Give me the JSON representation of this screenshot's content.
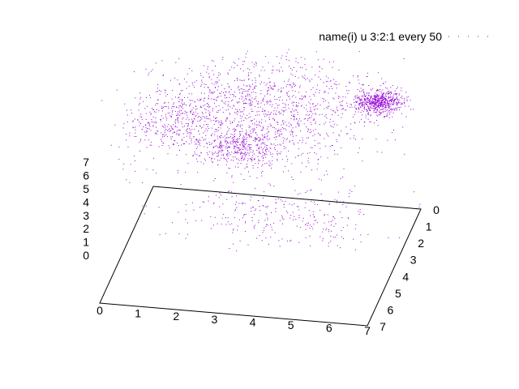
{
  "chart_data": {
    "type": "scatter",
    "dimensions": 3,
    "title": "",
    "legend": {
      "label": "name(i) u 3:2:1 every 50",
      "position": "top-right"
    },
    "series": [
      {
        "name": "name(i) u 3:2:1 every 50",
        "color": "#9400d3",
        "marker": "dot",
        "clusters": [
          {
            "x": 3.2,
            "y": 2.7,
            "z": 5.6,
            "sx": 0.55,
            "sy": 0.55,
            "sz": 0.35,
            "count": 420
          },
          {
            "x": 6.2,
            "y": 5.4,
            "z": 6.3,
            "sx": 0.3,
            "sy": 0.35,
            "sz": 0.12,
            "count": 650
          },
          {
            "x": 1.2,
            "y": 3.0,
            "z": 6.6,
            "sx": 0.6,
            "sy": 1.0,
            "sz": 0.25,
            "count": 300
          },
          {
            "x": 3.3,
            "y": 5.0,
            "z": 6.0,
            "sx": 1.4,
            "sy": 1.3,
            "sz": 0.7,
            "count": 650
          },
          {
            "x": 3.7,
            "y": 4.6,
            "z": 6.8,
            "sx": 1.4,
            "sy": 1.2,
            "sz": 0.4,
            "count": 350
          },
          {
            "x": 4.5,
            "y": 0.8,
            "z": 3.2,
            "sx": 1.3,
            "sy": 0.8,
            "sz": 0.8,
            "count": 300
          },
          {
            "x": 2.7,
            "y": 3.7,
            "z": 5.0,
            "sx": 1.6,
            "sy": 1.6,
            "sz": 0.6,
            "count": 300
          }
        ]
      }
    ],
    "axes": {
      "x": {
        "range": [
          0,
          7
        ],
        "ticks": [
          "0",
          "1",
          "2",
          "3",
          "4",
          "5",
          "6",
          "7"
        ]
      },
      "y": {
        "range": [
          0,
          7
        ],
        "ticks": [
          "0",
          "1",
          "2",
          "3",
          "4",
          "5",
          "6",
          "7"
        ]
      },
      "z": {
        "range": [
          0,
          7
        ],
        "ticks": [
          "0",
          "1",
          "2",
          "3",
          "4",
          "5",
          "6",
          "7"
        ]
      }
    },
    "grid": false
  }
}
